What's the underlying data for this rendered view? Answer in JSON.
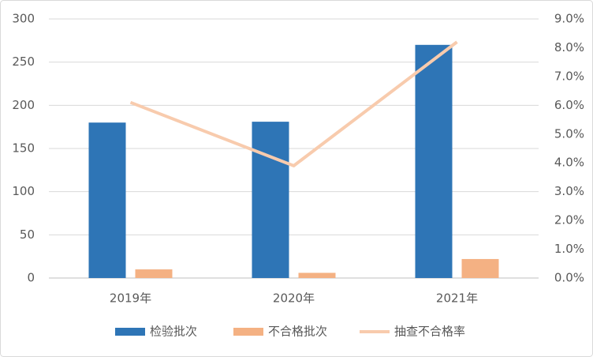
{
  "chart_data": {
    "type": "bar",
    "categories": [
      "2019年",
      "2020年",
      "2021年"
    ],
    "series": [
      {
        "name": "检验批次",
        "type": "bar",
        "color": "#2e75b6",
        "values": [
          180,
          181,
          270
        ]
      },
      {
        "name": "不合格批次",
        "type": "bar",
        "color": "#f4b183",
        "values": [
          10,
          6,
          22
        ]
      },
      {
        "name": "抽查不合格率",
        "type": "line",
        "axis": "y2",
        "color": "#f8cbad",
        "values": [
          6.1,
          3.9,
          8.2
        ]
      }
    ],
    "ylim": [
      0,
      300
    ],
    "yticks": [
      0,
      50,
      100,
      150,
      200,
      250,
      300
    ],
    "y2lim": [
      0,
      9
    ],
    "y2ticks": [
      {
        "value": 0,
        "label": "0.0%"
      },
      {
        "value": 1,
        "label": "1.0%"
      },
      {
        "value": 2,
        "label": "2.0%"
      },
      {
        "value": 3,
        "label": "3.0%"
      },
      {
        "value": 4,
        "label": "4.0%"
      },
      {
        "value": 5,
        "label": "5.0%"
      },
      {
        "value": 6,
        "label": "6.0%"
      },
      {
        "value": 7,
        "label": "7.0%"
      },
      {
        "value": 8,
        "label": "8.0%"
      },
      {
        "value": 9,
        "label": "9.0%"
      }
    ],
    "grid": true,
    "legend": "bottom"
  }
}
